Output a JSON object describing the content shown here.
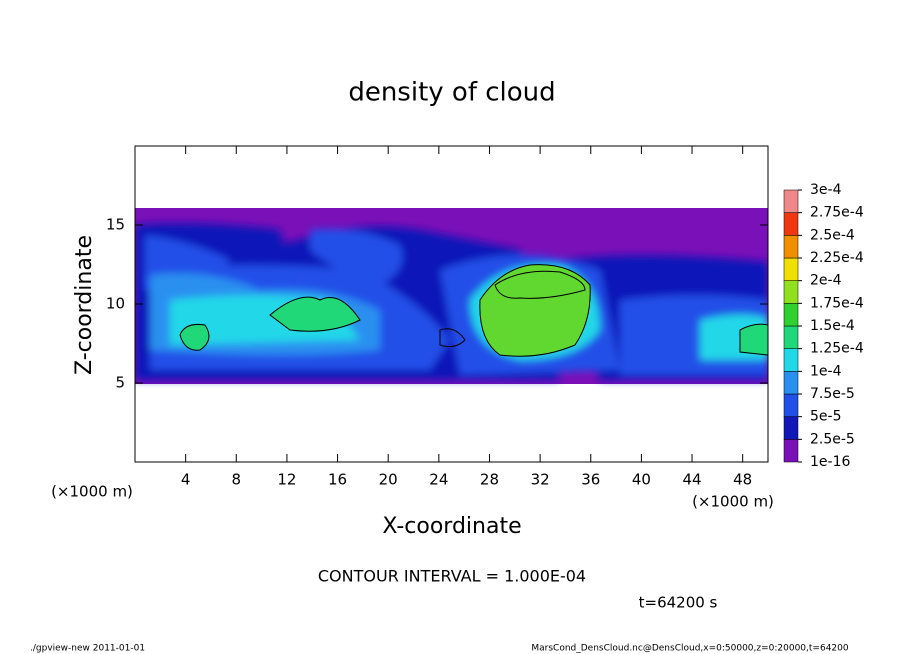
{
  "chart_data": {
    "type": "contour",
    "title": "density of cloud",
    "x_label": "X-coordinate",
    "y_label": "Z-coordinate",
    "x_unit": "(×1000 m)",
    "x_unit_right": "(×1000 m)",
    "xlim": [
      0,
      50
    ],
    "ylim": [
      0,
      20
    ],
    "xticks": [
      4,
      8,
      12,
      16,
      20,
      24,
      28,
      32,
      36,
      40,
      44,
      48
    ],
    "yticks": [
      5,
      10,
      15
    ],
    "annotation": "CONTOUR INTERVAL = 1.000E-04",
    "time_label": "t=64200 s",
    "footer_left": "./gpview-new   2011-01-01",
    "footer_right": "MarsCond_DensCloud.nc@DensCloud,x=0:50000,z=0:20000,t=64200",
    "colorbar": {
      "levels": [
        {
          "value": 1e-16,
          "label": "1e-16"
        },
        {
          "value": 2.5e-05,
          "label": "2.5e-5"
        },
        {
          "value": 5e-05,
          "label": "5e-5"
        },
        {
          "value": 7.5e-05,
          "label": "7.5e-5"
        },
        {
          "value": 0.0001,
          "label": "1e-4"
        },
        {
          "value": 0.000125,
          "label": "1.25e-4"
        },
        {
          "value": 0.00015,
          "label": "1.5e-4"
        },
        {
          "value": 0.000175,
          "label": "1.75e-4"
        },
        {
          "value": 0.0002,
          "label": "2e-4"
        },
        {
          "value": 0.000225,
          "label": "2.25e-4"
        },
        {
          "value": 0.00025,
          "label": "2.5e-4"
        },
        {
          "value": 0.000275,
          "label": "2.75e-4"
        },
        {
          "value": 0.0003,
          "label": "3e-4"
        }
      ],
      "colors": [
        "#7a10b8",
        "#1018b8",
        "#2050e8",
        "#2a90f0",
        "#20d8e8",
        "#20d878",
        "#30d030",
        "#90e020",
        "#f0e000",
        "#f09000",
        "#f03810",
        "#f08888"
      ]
    }
  }
}
